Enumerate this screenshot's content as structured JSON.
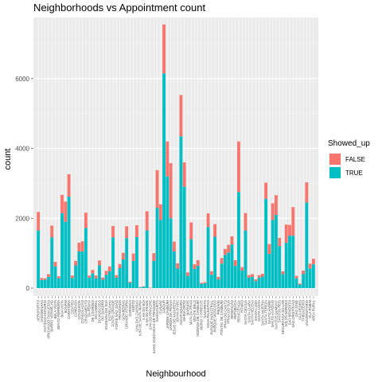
{
  "chart_data": {
    "type": "bar",
    "stacked": true,
    "title": "Neighborhoods vs Appointment count",
    "xlabel": "Neighbourhood",
    "ylabel": "count",
    "ylim": [
      0,
      7700
    ],
    "yticks": [
      0,
      2000,
      4000,
      6000
    ],
    "grid": true,
    "legend": {
      "title": "Showed_up",
      "position": "right"
    },
    "colors": {
      "FALSE": "#F8766D",
      "TRUE": "#00BFC4",
      "panel": "#EBEBEB",
      "grid": "#FFFFFF"
    },
    "series": [
      {
        "name": "TRUE",
        "values": [
          1650,
          230,
          240,
          320,
          1450,
          620,
          280,
          2150,
          1900,
          2620,
          290,
          650,
          1050,
          1050,
          1720,
          300,
          420,
          280,
          650,
          240,
          380,
          480,
          1450,
          300,
          570,
          820,
          1430,
          150,
          780,
          1460,
          20,
          40,
          1650,
          0,
          780,
          2300,
          1950,
          6150,
          3200,
          2000,
          1050,
          560,
          4350,
          2900,
          350,
          1400,
          550,
          640,
          120,
          140,
          1750,
          380,
          1470,
          250,
          700,
          950,
          1020,
          1250,
          640,
          2750,
          500,
          1650,
          300,
          320,
          200,
          300,
          330,
          2560,
          980,
          1950,
          2100,
          1200,
          400,
          1300,
          1500,
          1500,
          280,
          100,
          400,
          2450,
          560,
          680
        ]
      },
      {
        "name": "FALSE",
        "values": [
          530,
          60,
          40,
          80,
          340,
          130,
          60,
          520,
          580,
          640,
          70,
          130,
          250,
          290,
          440,
          60,
          100,
          80,
          140,
          60,
          110,
          140,
          330,
          70,
          120,
          190,
          340,
          30,
          210,
          340,
          10,
          10,
          550,
          10,
          220,
          1080,
          450,
          1400,
          1000,
          1580,
          280,
          150,
          1180,
          700,
          100,
          480,
          130,
          160,
          30,
          30,
          390,
          100,
          360,
          70,
          160,
          170,
          220,
          230,
          160,
          1450,
          100,
          500,
          70,
          80,
          50,
          70,
          80,
          460,
          280,
          480,
          560,
          240,
          80,
          520,
          310,
          820,
          70,
          30,
          100,
          580,
          140,
          160
        ]
      }
    ],
    "categories": [
      "AEROPORTO",
      "ANDORINHAS",
      "ANTÔNIO HONÓRIO",
      "ARIOVALDO FAVALESSA",
      "BARRO VERMELHO",
      "BELA VISTA",
      "BENTO FERREIRA",
      "BOA VISTA",
      "BONFIM",
      "CARATOÍRA",
      "CENTRO",
      "COMDUSA",
      "CONQUISTA",
      "CONSOLAÇÃO",
      "CRUZAMENTO",
      "DA PENHA",
      "DE LOURDES",
      "DO CABRAL",
      "DO MOSCOSO",
      "DO QUADRO",
      "ENSEADA DO SUÁ",
      "ESTRELINHA",
      "FONTE GRANDE",
      "FORTE SÃO JOÃO",
      "FRADINHOS",
      "GOIABEIRAS",
      "GRANDE VITÓRIA",
      "GURIGICA",
      "HORTO",
      "ILHA DAS CAIEIRAS",
      "ILHA DE SANTA MARIA",
      "ILHA DO BOI",
      "ILHA DO FRADE",
      "ILHA DO PRÍNCIPE",
      "ILHAS OCEÂNICAS DE TRINDADE",
      "INHANGUETÁ",
      "ITARARÉ",
      "JABOUR",
      "JARDIM CAMBURI",
      "JARDIM DA PENHA",
      "JESUS DE NAZARETH",
      "JOANA D´ARC",
      "JUCUTUQUARA",
      "MARIA ORTIZ",
      "MARUÍPE",
      "MATA DA PRAIA",
      "MONTE BELO",
      "MORADA DE CAMBURI",
      "MÁRIO CYPRESTE",
      "NAZARETH",
      "NOVA PALESTINA",
      "PARQUE INDUSTRIAL",
      "PARQUE MOSCOSO",
      "PIEDADE",
      "PONTAL DE CAMBURI",
      "PRAIA DO CANTO",
      "PRAIA DO SUÁ",
      "REDENÇÃO",
      "REPÚBLICA",
      "RESISTÊNCIA",
      "ROMÃO",
      "SANTA CECÍLIA",
      "SANTA CLARA",
      "SANTA HELENA",
      "SANTA LUÍZA",
      "SANTA LÚCIA",
      "SANTA MARTHA",
      "SANTA TEREZA",
      "SANTO ANDRÉ",
      "SANTO ANTÔNIO",
      "SANTOS DUMONT",
      "SANTOS REIS",
      "SEGURANÇA DO LAR",
      "SOLON BORGES",
      "SÃO BENEDITO",
      "SÃO CRISTÓVÃO",
      "SÃO JOSÉ",
      "SÃO PEDRO",
      "TABUAZEIRO",
      "UNIVERSITÁRIO",
      "VILA RUBIM",
      "ÁREA RURAL"
    ]
  }
}
